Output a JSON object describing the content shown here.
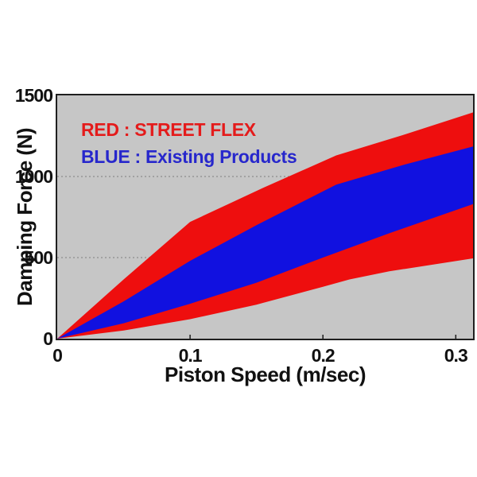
{
  "legend": {
    "line1": {
      "text": "RED : STREET FLEX",
      "color": "#e41b1b"
    },
    "line2": {
      "text": "BLUE : Existing Products",
      "color": "#2727cc"
    }
  },
  "chart_data": {
    "type": "area",
    "title": "",
    "xlabel": "Piston Speed (m/sec)",
    "ylabel": "Damping Force (N)",
    "xlim": [
      0,
      0.313
    ],
    "ylim": [
      0,
      1500
    ],
    "xtick_values": [
      0,
      0.1,
      0.2,
      0.3
    ],
    "xtick_labels": [
      "0",
      "0.1",
      "0.2",
      "0.3"
    ],
    "ytick_values": [
      0,
      500,
      1000,
      1500
    ],
    "ytick_labels": [
      "0",
      "500",
      "1000",
      "1500"
    ],
    "gridlines_y": [
      500,
      1000
    ],
    "grid_style": "dotted",
    "plot_bg": "#c6c6c6",
    "axis_color": "#1d1d1d",
    "grid_color": "#8c8c8c",
    "series": [
      {
        "name": "STREET FLEX",
        "band_name": "street-flex-band",
        "color": "#ee0e0e",
        "band": {
          "x_upper": [
            0,
            0.05,
            0.1,
            0.155,
            0.21,
            0.26,
            0.313
          ],
          "upper": [
            0,
            365,
            720,
            930,
            1130,
            1255,
            1395
          ],
          "x_lower": [
            0,
            0.05,
            0.1,
            0.15,
            0.2,
            0.22,
            0.25,
            0.313
          ],
          "lower": [
            0,
            50,
            120,
            210,
            320,
            365,
            415,
            495
          ]
        }
      },
      {
        "name": "Existing Products",
        "band_name": "existing-products-band",
        "color": "#1111e0",
        "band": {
          "x_upper": [
            0,
            0.05,
            0.1,
            0.15,
            0.21,
            0.26,
            0.313
          ],
          "upper": [
            0,
            230,
            480,
            700,
            950,
            1070,
            1185
          ],
          "x_lower": [
            0,
            0.05,
            0.1,
            0.15,
            0.2,
            0.25,
            0.313
          ],
          "lower": [
            0,
            95,
            215,
            345,
            500,
            650,
            830
          ]
        }
      }
    ]
  }
}
